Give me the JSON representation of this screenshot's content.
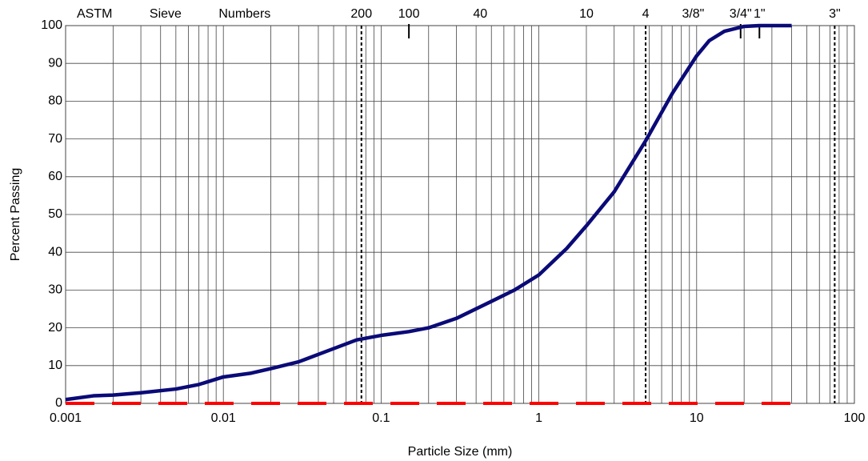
{
  "chart_data": {
    "type": "line",
    "sieve_title": "ASTM Sieve Numbers",
    "x_label": "Particle Size (mm)",
    "y_label": "Percent Passing",
    "log_x": true,
    "grid": true,
    "xlim": [
      0.001,
      100
    ],
    "ylim": [
      0,
      100
    ],
    "xticks": [
      0.001,
      0.01,
      0.1,
      1,
      10,
      100
    ],
    "yticks": [
      0,
      10,
      20,
      30,
      40,
      50,
      60,
      70,
      80,
      90,
      100
    ],
    "x_minor_grid": [
      0.002,
      0.003,
      0.004,
      0.005,
      0.006,
      0.007,
      0.008,
      0.009,
      0.02,
      0.03,
      0.04,
      0.05,
      0.06,
      0.07,
      0.08,
      0.09,
      0.2,
      0.3,
      0.4,
      0.5,
      0.6,
      0.7,
      0.8,
      0.9,
      2,
      3,
      4,
      5,
      6,
      7,
      8,
      9,
      20,
      30,
      40,
      50,
      60,
      70,
      80,
      90
    ],
    "sieves": [
      {
        "label": "200",
        "size": 0.075,
        "marker": "dashed"
      },
      {
        "label": "100",
        "size": 0.15,
        "marker": "tick"
      },
      {
        "label": "40",
        "size": 0.425
      },
      {
        "label": "10",
        "size": 2.0
      },
      {
        "label": "4",
        "size": 4.75,
        "marker": "dashed"
      },
      {
        "label": "3/8\"",
        "size": 9.5
      },
      {
        "label": "3/4\"",
        "size": 19,
        "marker": "tick"
      },
      {
        "label": "1\"",
        "size": 25,
        "marker": "tick"
      },
      {
        "label": "3\"",
        "size": 75,
        "marker": "dashed"
      }
    ],
    "series": [
      {
        "color": "#0a0a78",
        "x": [
          0.001,
          0.0015,
          0.002,
          0.003,
          0.005,
          0.007,
          0.01,
          0.015,
          0.02,
          0.03,
          0.05,
          0.07,
          0.1,
          0.15,
          0.2,
          0.3,
          0.5,
          0.7,
          1,
          1.5,
          2,
          3,
          4.75,
          7,
          10,
          12,
          15,
          20,
          25,
          40
        ],
        "values": [
          1,
          2,
          2.2,
          2.8,
          3.8,
          5,
          7,
          8,
          9.2,
          11,
          14.5,
          16.8,
          18,
          19,
          20,
          22.5,
          27,
          30,
          34,
          41,
          47,
          56,
          69.5,
          82,
          92,
          96,
          98.5,
          99.8,
          100,
          100
        ]
      },
      {
        "color": "#ff0000",
        "dashed": true,
        "x": [
          0.001,
          40
        ],
        "values": [
          0,
          0
        ]
      }
    ]
  }
}
